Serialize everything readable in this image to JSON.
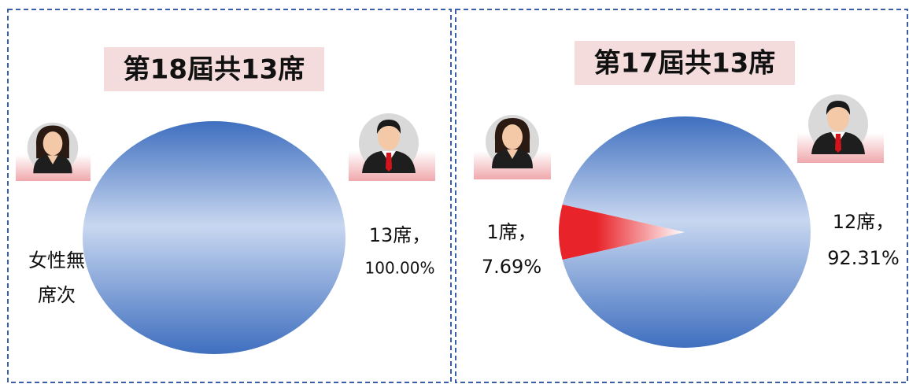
{
  "chart_data": [
    {
      "type": "pie",
      "title": "第18屆共13席",
      "values": [
        0,
        100
      ],
      "value_labels": [
        [
          "女性無",
          "席次"
        ],
        [
          "13席，",
          "100.00%"
        ]
      ],
      "colors": [
        "#e8242a",
        "#3f6fbf"
      ]
    },
    {
      "type": "pie",
      "title": "第17屆共13席",
      "values": [
        7.69,
        92.31
      ],
      "value_labels": [
        [
          "1席，",
          "7.69%"
        ],
        [
          "12席，",
          "92.31%"
        ]
      ],
      "colors": [
        "#e8242a",
        "#3f6fbf"
      ]
    }
  ]
}
